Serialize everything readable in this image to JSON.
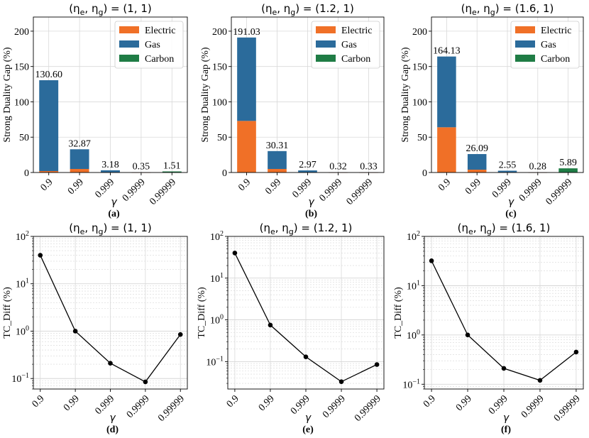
{
  "colors": {
    "Electric": "#f07027",
    "Gas": "#2b6b9b",
    "Carbon": "#1f7c45",
    "line": "#000000"
  },
  "chart_data": [
    {
      "type": "bar",
      "stacked": true,
      "title": "(η_e, η_g) = (1, 1)",
      "title_parts": {
        "lhs": "(η",
        "e": "e",
        "sep": ", η",
        "g": "g",
        "rhs": ") = (1, 1)"
      },
      "xlabel": "γ",
      "ylabel": "Strong Duality Gap (%)",
      "sublabel": "(a)",
      "categories": [
        "0.9",
        "0.99",
        "0.999",
        "0.9999",
        "0.99999"
      ],
      "ylim": [
        0,
        220
      ],
      "yticks": [
        "0",
        "50",
        "100",
        "150",
        "200"
      ],
      "series": [
        {
          "name": "Electric",
          "values": [
            2.0,
            5.0,
            0.3,
            0.05,
            0.1
          ]
        },
        {
          "name": "Gas",
          "values": [
            128.6,
            27.87,
            2.88,
            0.3,
            0.3
          ]
        },
        {
          "name": "Carbon",
          "values": [
            0,
            0,
            0,
            0,
            1.11
          ]
        }
      ],
      "data_labels": [
        "130.60",
        "32.87",
        "3.18",
        "0.35",
        "1.51"
      ],
      "legend": [
        "Electric",
        "Gas",
        "Carbon"
      ],
      "legend_position": "top-right",
      "grid": true
    },
    {
      "type": "bar",
      "stacked": true,
      "title": "(η_e, η_g) = (1.2, 1)",
      "title_parts": {
        "lhs": "(η",
        "e": "e",
        "sep": ", η",
        "g": "g",
        "rhs": ") = (1.2, 1)"
      },
      "xlabel": "γ",
      "ylabel": "Strong Duality Gap (%)",
      "sublabel": "(b)",
      "categories": [
        "0.9",
        "0.99",
        "0.999",
        "0.9999",
        "0.99999"
      ],
      "ylim": [
        0,
        220
      ],
      "yticks": [
        "0",
        "50",
        "100",
        "150",
        "200"
      ],
      "series": [
        {
          "name": "Electric",
          "values": [
            73.0,
            5.0,
            0.3,
            0.05,
            0.05
          ]
        },
        {
          "name": "Gas",
          "values": [
            118.03,
            25.31,
            2.67,
            0.27,
            0.28
          ]
        },
        {
          "name": "Carbon",
          "values": [
            0,
            0,
            0,
            0,
            0
          ]
        }
      ],
      "data_labels": [
        "191.03",
        "30.31",
        "2.97",
        "0.32",
        "0.33"
      ],
      "legend": [
        "Electric",
        "Gas",
        "Carbon"
      ],
      "legend_position": "top-right",
      "grid": true
    },
    {
      "type": "bar",
      "stacked": true,
      "title": "(η_e, η_g) = (1.6, 1)",
      "title_parts": {
        "lhs": "(η",
        "e": "e",
        "sep": ", η",
        "g": "g",
        "rhs": ") = (1.6, 1)"
      },
      "xlabel": "γ",
      "ylabel": "Strong Duality Gap (%)",
      "sublabel": "(c)",
      "categories": [
        "0.9",
        "0.99",
        "0.999",
        "0.9999",
        "0.99999"
      ],
      "ylim": [
        0,
        220
      ],
      "yticks": [
        "0",
        "50",
        "100",
        "150",
        "200"
      ],
      "series": [
        {
          "name": "Electric",
          "values": [
            64.0,
            4.0,
            0.3,
            0.05,
            0.1
          ]
        },
        {
          "name": "Gas",
          "values": [
            100.13,
            22.09,
            2.25,
            0.23,
            0.3
          ]
        },
        {
          "name": "Carbon",
          "values": [
            0,
            0,
            0,
            0,
            5.49
          ]
        }
      ],
      "data_labels": [
        "164.13",
        "26.09",
        "2.55",
        "0.28",
        "5.89"
      ],
      "legend": [
        "Electric",
        "Gas",
        "Carbon"
      ],
      "legend_position": "top-right",
      "grid": true
    },
    {
      "type": "line",
      "yscale": "log",
      "title": "(η_e, η_g) = (1, 1)",
      "title_parts": {
        "lhs": "(η",
        "e": "e",
        "sep": ", η",
        "g": "g",
        "rhs": ") = (1, 1)"
      },
      "xlabel": "γ",
      "ylabel": "TC_Diff (%)",
      "sublabel": "(d)",
      "categories": [
        "0.9",
        "0.99",
        "0.999",
        "0.9999",
        "0.99999"
      ],
      "values": [
        40,
        1.0,
        0.21,
        0.085,
        0.85
      ],
      "ylim": [
        0.06,
        100
      ],
      "grid": true
    },
    {
      "type": "line",
      "yscale": "log",
      "title": "(η_e, η_g) = (1.2, 1)",
      "title_parts": {
        "lhs": "(η",
        "e": "e",
        "sep": ", η",
        "g": "g",
        "rhs": ") = (1.2, 1)"
      },
      "xlabel": "γ",
      "ylabel": "TC_Diff (%)",
      "sublabel": "(e)",
      "categories": [
        "0.9",
        "0.99",
        "0.999",
        "0.9999",
        "0.99999"
      ],
      "values": [
        40,
        0.75,
        0.13,
        0.033,
        0.085
      ],
      "ylim": [
        0.022,
        100
      ],
      "grid": true
    },
    {
      "type": "line",
      "yscale": "log",
      "title": "(η_e, η_g) = (1.6, 1)",
      "title_parts": {
        "lhs": "(η",
        "e": "e",
        "sep": ", η",
        "g": "g",
        "rhs": ") = (1.6, 1)"
      },
      "xlabel": "γ",
      "ylabel": "TC_Diff (%)",
      "sublabel": "(f)",
      "categories": [
        "0.9",
        "0.99",
        "0.999",
        "0.9999",
        "0.99999"
      ],
      "values": [
        32,
        1.0,
        0.21,
        0.12,
        0.45
      ],
      "ylim": [
        0.08,
        100
      ],
      "grid": true
    }
  ]
}
